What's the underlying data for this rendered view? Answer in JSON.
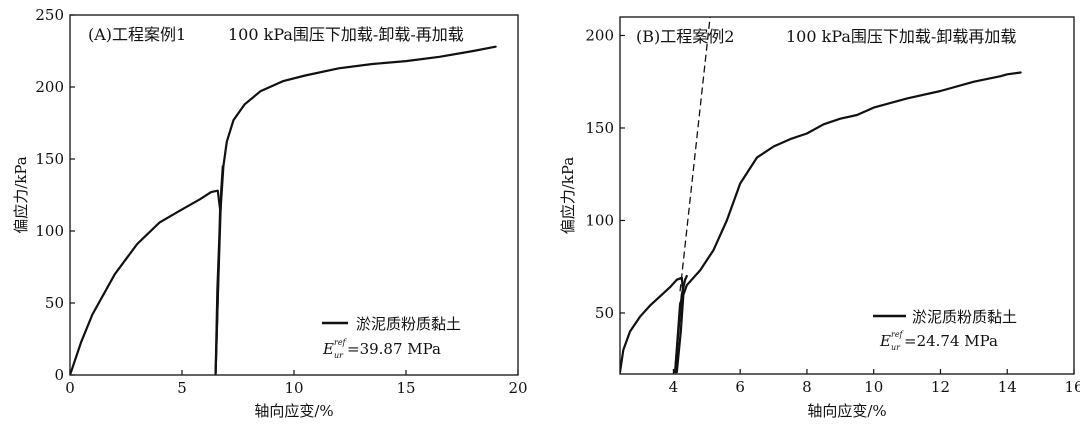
{
  "chart_data": [
    {
      "type": "line",
      "panel_label": "(A)工程案例1",
      "title": "100 kPa围压下加载-卸载-再加载",
      "xlabel": "轴向应变/%",
      "ylabel": "偏应力/kPa",
      "xlim": [
        0,
        20
      ],
      "ylim": [
        0,
        250
      ],
      "xticks": [
        0,
        5,
        10,
        15,
        20
      ],
      "yticks": [
        0,
        50,
        100,
        150,
        200,
        250
      ],
      "legend": {
        "placement": "bottom-right",
        "label": "淤泥质粉质黏土",
        "modulus_symbol": "E",
        "modulus_sup": "ref",
        "modulus_sub": "ur",
        "modulus_value": "=39.87 MPa"
      },
      "series": [
        {
          "name": "淤泥质粉质黏土",
          "x": [
            0,
            0.5,
            1.0,
            2.0,
            3.0,
            4.0,
            5.0,
            5.8,
            6.3,
            6.6,
            6.7,
            6.6,
            6.5,
            6.58,
            6.7,
            6.85,
            7.0,
            7.3,
            7.8,
            8.5,
            9.5,
            10.5,
            12.0,
            13.5,
            15.0,
            16.5,
            18.0,
            19.0
          ],
          "y": [
            0,
            23,
            42,
            70,
            91,
            106,
            115,
            122,
            127,
            128,
            115,
            55,
            1,
            60,
            110,
            145,
            162,
            177,
            188,
            197,
            204,
            208,
            213,
            216,
            218,
            221,
            225,
            228
          ]
        },
        {
          "name": "",
          "dashed": false,
          "x": [
            6.5,
            6.62,
            6.75,
            6.82
          ],
          "y": [
            1,
            65,
            128,
            145
          ]
        }
      ]
    },
    {
      "type": "line",
      "panel_label": "(B)工程案例2",
      "title": "100 kPa围压下加载-卸载再加载",
      "xlabel": "轴向应变/%",
      "ylabel": "偏应力/kPa",
      "xlim": [
        2.4,
        16
      ],
      "ylim": [
        17,
        210
      ],
      "xticks": [
        4,
        6,
        8,
        10,
        12,
        14,
        16
      ],
      "yticks": [
        50,
        100,
        150,
        200
      ],
      "legend": {
        "placement": "bottom-right",
        "label": "淤泥质粉质黏土",
        "modulus_symbol": "E",
        "modulus_sup": "ref",
        "modulus_sub": "ur",
        "modulus_value": "=24.74 MPa"
      },
      "series": [
        {
          "name": "淤泥质粉质黏土",
          "x": [
            2.4,
            2.5,
            2.7,
            3.0,
            3.3,
            3.6,
            3.9,
            4.1,
            4.25,
            4.3,
            4.22,
            4.1,
            4.05,
            4.2,
            4.4,
            4.8,
            5.2,
            5.6,
            6.0,
            6.5,
            7.0,
            7.5,
            8.0,
            8.5,
            9.0,
            9.5,
            10.0,
            11.0,
            12.0,
            13.0,
            13.8,
            14.0,
            14.4
          ],
          "y": [
            18,
            30,
            40,
            48,
            54,
            59,
            64,
            68,
            69,
            60,
            40,
            18,
            18,
            55,
            65,
            73,
            84,
            100,
            120,
            134,
            140,
            144,
            147,
            152,
            155,
            157,
            161,
            166,
            170,
            175,
            178,
            179,
            180
          ]
        },
        {
          "name": "",
          "x": [
            4.05,
            4.15,
            4.25,
            4.35,
            4.4
          ],
          "y": [
            18,
            40,
            60,
            68,
            70
          ]
        },
        {
          "name": "",
          "dashed": true,
          "x": [
            4.2,
            5.1
          ],
          "y": [
            62,
            210
          ]
        }
      ]
    }
  ]
}
